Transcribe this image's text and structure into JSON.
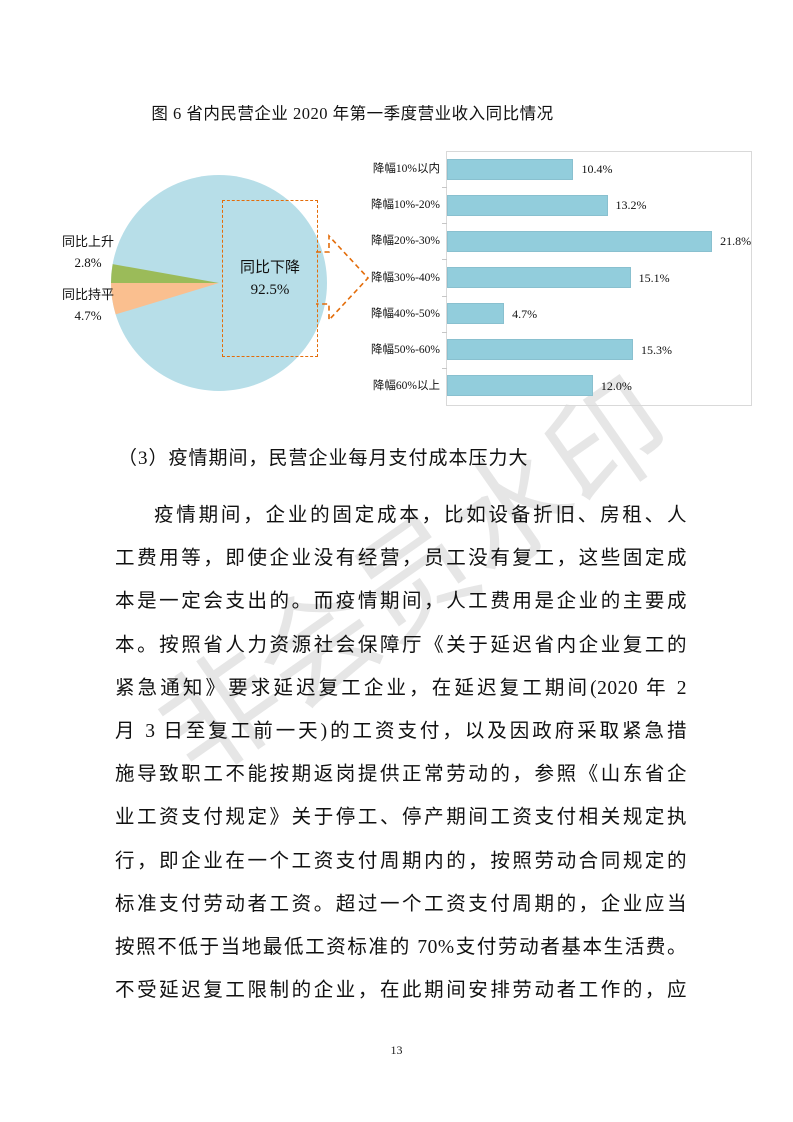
{
  "figure": {
    "title": "图 6  省内民营企业 2020 年第一季度营业收入同比情况",
    "pie": {
      "label_up": {
        "name": "同比上升",
        "value": "2.8%"
      },
      "label_flat": {
        "name": "同比持平",
        "value": "4.7%"
      },
      "label_down": {
        "name": "同比下降",
        "value": "92.5%"
      }
    }
  },
  "chart_data": [
    {
      "type": "pie",
      "title": "省内民营企业2020年第一季度营业收入同比情况",
      "labels": [
        "同比下降",
        "同比上升",
        "同比持平"
      ],
      "values": [
        92.5,
        2.8,
        4.7
      ],
      "colors": [
        "#B7DEE8",
        "#9BBB59",
        "#FABF8F"
      ],
      "annotation": "同比下降 92.5% 高亮框带箭头指向右侧柱状图"
    },
    {
      "type": "bar",
      "orientation": "horizontal",
      "categories": [
        "降幅10%以内",
        "降幅10%-20%",
        "降幅20%-30%",
        "降幅30%-40%",
        "降幅40%-50%",
        "降幅50%-60%",
        "降幅60%以上"
      ],
      "values": [
        10.4,
        13.2,
        21.8,
        15.1,
        4.7,
        15.3,
        12.0
      ],
      "value_labels": [
        "10.4%",
        "13.2%",
        "21.8%",
        "15.1%",
        "4.7%",
        "15.3%",
        "12.0%"
      ],
      "xlim": [
        0,
        25
      ],
      "bar_color": "#92CDDC",
      "grid": false,
      "legend": false
    }
  ],
  "heading": "（3）疫情期间，民营企业每月支付成本压力大",
  "body": {
    "lines": [
      "疫情期间，企业的固定成本，比如设备折旧、房租、人",
      "工费用等，即使企业没有经营，员工没有复工，这些固定成",
      "本是一定会支出的。而疫情期间，人工费用是企业的主要成",
      "本。按照省人力资源社会保障厅《关于延迟省内企业复工的",
      "紧急通知》要求延迟复工企业，在延迟复工期间(2020 年 2",
      "月 3 日至复工前一天)的工资支付，以及因政府采取紧急措",
      "施导致职工不能按期返岗提供正常劳动的，参照《山东省企",
      "业工资支付规定》关于停工、停产期间工资支付相关规定执",
      "行，即企业在一个工资支付周期内的，按照劳动合同规定的",
      "标准支付劳动者工资。超过一个工资支付周期的，企业应当",
      "按照不低于当地最低工资标准的 70%支付劳动者基本生活费。",
      "不受延迟复工限制的企业，在此期间安排劳动者工作的，应"
    ]
  },
  "watermark": "非会员水印",
  "page": {
    "number": "13"
  },
  "colors": {
    "pie_down_blue": "#B7DEE8",
    "pie_up_green": "#9BBB59",
    "pie_flat_orange": "#FABF8F",
    "bar_blue": "#92CDDC",
    "callout_orange": "#E36C09",
    "plot_border_gray": "#D9D9D9"
  }
}
